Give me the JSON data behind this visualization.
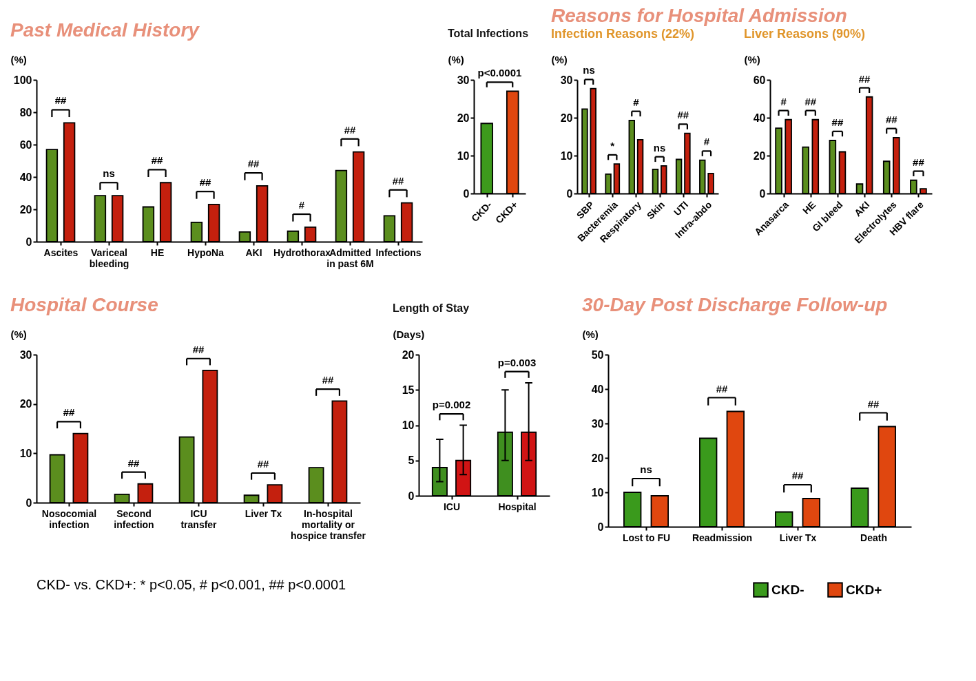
{
  "chart_data": [
    {
      "type": "bar",
      "title": "Past Medical History",
      "ylabel": "(%)",
      "categories": [
        "Ascites",
        "Variceal\nbleeding",
        "HE",
        "HypoNa",
        "AKI",
        "Hydrothorax",
        "Admitted\nin past 6M",
        "Infections"
      ],
      "ylim": [
        0,
        100
      ],
      "yticks": [
        0,
        20,
        40,
        60,
        80,
        100
      ],
      "series": [
        {
          "color": "#5b8e1e",
          "values": [
            57,
            28.5,
            21.5,
            12,
            6,
            6.5,
            44,
            16
          ]
        },
        {
          "color": "#c4200e",
          "values": [
            73.5,
            28.5,
            36.5,
            23,
            34.5,
            9,
            55.5,
            24
          ]
        }
      ],
      "annotations": [
        "##",
        "ns",
        "##",
        "##",
        "##",
        "#",
        "##",
        "##"
      ]
    },
    {
      "type": "bar",
      "title": "Total Infections",
      "ylabel": "(%)",
      "categories": [
        "CKD-",
        "CKD+"
      ],
      "ylim": [
        0,
        30
      ],
      "yticks": [
        0,
        10,
        20,
        30
      ],
      "values": [
        18.5,
        27
      ],
      "colors": [
        "#3d9a1c",
        "#e0470f"
      ],
      "annotations": [
        "p<0.0001"
      ]
    },
    {
      "type": "bar",
      "title": "Reasons for Hospital Admission",
      "subtitle": "Infection Reasons (22%)",
      "ylabel": "(%)",
      "categories": [
        "SBP",
        "Bacteremia",
        "Respiratory",
        "Skin",
        "UTI",
        "Intra-abdo"
      ],
      "ylim": [
        0,
        30
      ],
      "yticks": [
        0,
        10,
        20,
        30
      ],
      "series": [
        {
          "color": "#5b8e1e",
          "values": [
            22.3,
            5.1,
            19.3,
            6.4,
            9,
            8.8
          ]
        },
        {
          "color": "#c4200e",
          "values": [
            27.7,
            7.8,
            14.2,
            7.3,
            15.9,
            5.3
          ]
        }
      ],
      "annotations": [
        "ns",
        "*",
        "#",
        "ns",
        "##",
        "#"
      ]
    },
    {
      "type": "bar",
      "title": "Liver Reasons (90%)",
      "ylabel": "(%)",
      "categories": [
        "Anasarca",
        "HE",
        "GI bleed",
        "AKI",
        "Electrolytes",
        "HBV flare"
      ],
      "ylim": [
        0,
        60
      ],
      "yticks": [
        0,
        20,
        40,
        60
      ],
      "series": [
        {
          "color": "#5b8e1e",
          "values": [
            34.5,
            24.5,
            28,
            5,
            17,
            7
          ]
        },
        {
          "color": "#c4200e",
          "values": [
            39,
            39,
            22,
            51,
            29.5,
            2.5
          ]
        }
      ],
      "annotations": [
        "#",
        "##",
        "##",
        "##",
        "##",
        "##"
      ]
    },
    {
      "type": "bar",
      "title": "Hospital Course",
      "ylabel": "(%)",
      "categories": [
        "Nosocomial\ninfection",
        "Second\ninfection",
        "ICU\ntransfer",
        "Liver Tx",
        "In-hospital\nmortality or\nhospice transfer"
      ],
      "ylim": [
        0,
        30
      ],
      "yticks": [
        0,
        10,
        20,
        30
      ],
      "series": [
        {
          "color": "#5b8e1e",
          "values": [
            9.7,
            1.7,
            13.3,
            1.5,
            7.1
          ]
        },
        {
          "color": "#c4200e",
          "values": [
            14,
            3.8,
            26.8,
            3.6,
            20.6
          ]
        }
      ],
      "annotations": [
        "##",
        "##",
        "##",
        "##",
        "##",
        "CKD- vs. CKD+: * p<0.05, # p<0.001, ## p<0.0001"
      ]
    },
    {
      "type": "bar",
      "title": "Length of Stay",
      "ylabel": "(Days)",
      "categories": [
        "ICU",
        "Hospital"
      ],
      "ylim": [
        0,
        20
      ],
      "yticks": [
        0,
        5,
        10,
        15,
        20
      ],
      "series": [
        {
          "color": "#3f8f1f",
          "values": [
            4,
            9
          ],
          "errors": [
            [
              2,
              8
            ],
            [
              5,
              15
            ]
          ]
        },
        {
          "color": "#d11414",
          "values": [
            5,
            9
          ],
          "errors": [
            [
              3,
              10
            ],
            [
              5,
              16
            ]
          ]
        }
      ],
      "annotations": [
        "p=0.002",
        "p=0.003"
      ]
    },
    {
      "type": "bar",
      "title": "30-Day Post Discharge Follow-up",
      "ylabel": "(%)",
      "categories": [
        "Lost to FU",
        "Readmission",
        "Liver Tx",
        "Death"
      ],
      "ylim": [
        0,
        50
      ],
      "yticks": [
        0,
        10,
        20,
        30,
        40,
        50
      ],
      "legend": "bottom right",
      "series": [
        {
          "name": "CKD-",
          "color": "#3a9a1c",
          "values": [
            10,
            25.7,
            4.3,
            11.2
          ]
        },
        {
          "name": "CKD+",
          "color": "#e0470f",
          "values": [
            9,
            33.5,
            8.2,
            29.1
          ]
        }
      ],
      "annotations": [
        "ns",
        "##",
        "##",
        "##"
      ]
    }
  ]
}
